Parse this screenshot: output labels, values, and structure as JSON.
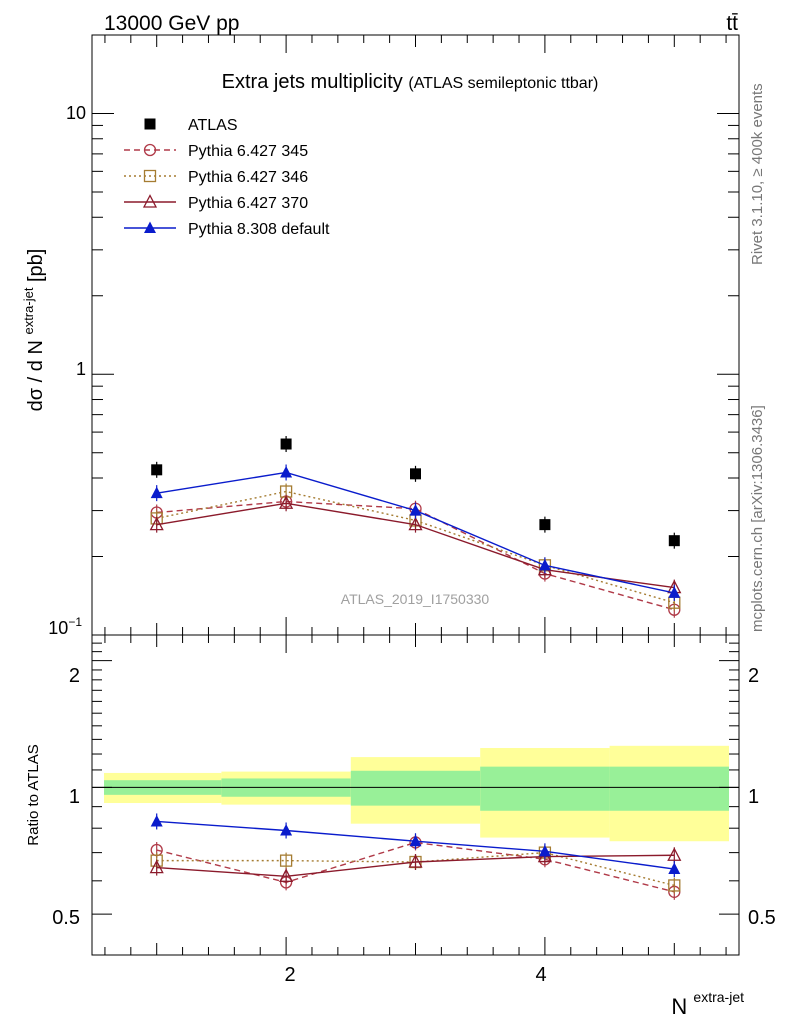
{
  "header": {
    "energy_label": "13000 GeV pp",
    "process_label": "tt̄"
  },
  "side_labels": {
    "rivet": "Rivet 3.1.10, ≥ 400k events",
    "mcplots": "mcplots.cern.ch [arXiv:1306.3436]"
  },
  "chart_data": [
    {
      "type": "line",
      "title": "Extra jets multiplicity",
      "subtitle": "(ATLAS semileptonic ttbar)",
      "watermark": "ATLAS_2019_I1750330",
      "ylabel": "dσ / d N",
      "ylabel_sup": "extra-jet",
      "ylabel_unit": "[pb]",
      "yscale": "log",
      "ylim": [
        0.1,
        20
      ],
      "xlim": [
        0.5,
        5.5
      ],
      "y_tick_labels": [
        "10",
        "1",
        "10"
      ],
      "y_tick_sup": "−1",
      "legend_position": "top-left",
      "x": [
        1,
        2,
        3,
        4,
        5
      ],
      "series": [
        {
          "name": "ATLAS",
          "color": "#000000",
          "marker": "square-filled",
          "line": "none",
          "values": [
            0.43,
            0.54,
            0.415,
            0.265,
            0.23
          ]
        },
        {
          "name": "Pythia 6.427 345",
          "color": "#b03a48",
          "marker": "circle-open",
          "line": "dashed",
          "values": [
            0.295,
            0.325,
            0.305,
            0.172,
            0.125
          ]
        },
        {
          "name": "Pythia 6.427 346",
          "color": "#a57c32",
          "marker": "square-open",
          "line": "dotted",
          "values": [
            0.28,
            0.355,
            0.275,
            0.185,
            0.133
          ]
        },
        {
          "name": "Pythia 6.427 370",
          "color": "#8b1a2b",
          "marker": "triangle-open",
          "line": "solid",
          "values": [
            0.265,
            0.32,
            0.265,
            0.178,
            0.152
          ]
        },
        {
          "name": "Pythia 8.308 default",
          "color": "#0a1ccc",
          "marker": "triangle-filled",
          "line": "solid",
          "values": [
            0.35,
            0.42,
            0.3,
            0.185,
            0.145
          ]
        }
      ]
    },
    {
      "type": "line",
      "ylabel": "Ratio to ATLAS",
      "xlabel": "N",
      "xlabel_sup": "extra-jet",
      "ylim": [
        0.4,
        2.3
      ],
      "xlim": [
        0.5,
        5.5
      ],
      "y_tick_labels": [
        "2",
        "1",
        "0.5"
      ],
      "y_tick_values": [
        2,
        1,
        0.5
      ],
      "x_tick_labels": [
        "2",
        "4"
      ],
      "x_tick_values": [
        2,
        4
      ],
      "reference_line": 1,
      "bands": {
        "x_edges": [
          0.6,
          1.5,
          2.5,
          3.5,
          4.5,
          5.5
        ],
        "inner_low": [
          0.96,
          0.95,
          0.905,
          0.88,
          0.88
        ],
        "inner_high": [
          1.04,
          1.05,
          1.095,
          1.12,
          1.12
        ],
        "outer_low": [
          0.918,
          0.91,
          0.82,
          0.76,
          0.745
        ],
        "outer_high": [
          1.082,
          1.09,
          1.18,
          1.24,
          1.255
        ],
        "inner_color": "#98f098",
        "outer_color": "#ffff99"
      },
      "x": [
        1,
        2,
        3,
        4,
        5
      ],
      "series": [
        {
          "name": "Pythia 6.427 345",
          "color": "#b03a48",
          "marker": "circle-open",
          "line": "dashed",
          "values": [
            0.71,
            0.595,
            0.74,
            0.675,
            0.565
          ]
        },
        {
          "name": "Pythia 6.427 346",
          "color": "#a57c32",
          "marker": "square-open",
          "line": "dotted",
          "values": [
            0.67,
            0.67,
            0.665,
            0.7,
            0.585
          ]
        },
        {
          "name": "Pythia 6.427 370",
          "color": "#8b1a2b",
          "marker": "triangle-open",
          "line": "solid",
          "values": [
            0.645,
            0.615,
            0.665,
            0.685,
            0.69
          ]
        },
        {
          "name": "Pythia 8.308 default",
          "color": "#0a1ccc",
          "marker": "triangle-filled",
          "line": "solid",
          "values": [
            0.83,
            0.79,
            0.745,
            0.705,
            0.64
          ]
        }
      ]
    }
  ]
}
